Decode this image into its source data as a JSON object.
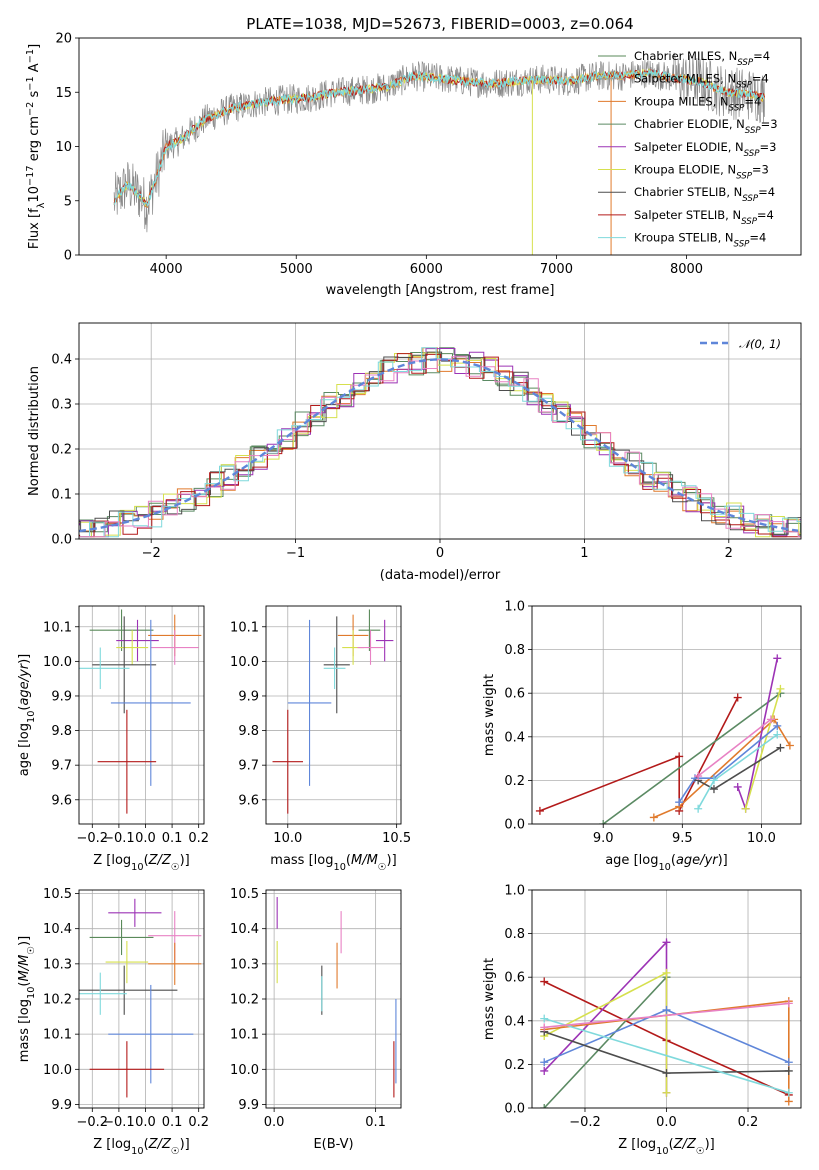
{
  "colors": {
    "grid": "#b0b0b0",
    "chabrier_miles": "#5a8a5a",
    "salpeter_miles": "#999999",
    "kroupa_miles": "#e07a2c",
    "chabrier_elodie": "#5b8a63",
    "salpeter_elodie": "#9c33b5",
    "kroupa_elodie": "#d6e04e",
    "chabrier_stelib": "#4d4d4d",
    "salpeter_stelib": "#b31a1a",
    "kroupa_stelib": "#7fd9dc",
    "blue": "#5f86d9",
    "pink": "#e882c4"
  },
  "chart_data": [
    {
      "id": "spectrum",
      "type": "line",
      "title": "PLATE=1038, MJD=52673, FIBERID=0003, z=0.064",
      "xlabel": "wavelength [Angstrom, rest frame]",
      "ylabel": "Flux [f_λ 10^-17 erg cm^-2 s^-1 A^-1]",
      "xlim": [
        3330,
        8880
      ],
      "ylim": [
        0,
        20
      ],
      "xticks": [
        4000,
        5000,
        6000,
        7000,
        8000
      ],
      "yticks": [
        0,
        5,
        10,
        15,
        20
      ],
      "continuum_x": [
        3600,
        3700,
        3800,
        3850,
        3950,
        4000,
        4100,
        4200,
        4300,
        4400,
        4500,
        4700,
        4900,
        5100,
        5300,
        5500,
        5700,
        5900,
        6100,
        6300,
        6500,
        6700,
        6900,
        7100,
        7300,
        7500,
        7700,
        7900,
        8100,
        8300,
        8500,
        8600
      ],
      "continuum_y": [
        5.0,
        6.5,
        5.5,
        4.5,
        8.0,
        10.0,
        10.5,
        11.5,
        12.5,
        13.0,
        13.5,
        14.0,
        14.3,
        14.5,
        15.0,
        15.2,
        15.5,
        16.5,
        16.3,
        16.0,
        15.8,
        16.0,
        16.2,
        16.0,
        16.5,
        16.5,
        16.8,
        16.3,
        16.0,
        15.0,
        14.8,
        14.5
      ],
      "legend": [
        {
          "label": "Chabrier MILES, N",
          "sub": "SSP",
          "suffix": "=4"
        },
        {
          "label": "Salpeter MILES, N",
          "sub": "SSP",
          "suffix": "=4"
        },
        {
          "label": "Kroupa MILES, N",
          "sub": "SSP",
          "suffix": "=4"
        },
        {
          "label": "Chabrier ELODIE, N",
          "sub": "SSP",
          "suffix": "=3"
        },
        {
          "label": "Salpeter ELODIE, N",
          "sub": "SSP",
          "suffix": "=3"
        },
        {
          "label": "Kroupa ELODIE, N",
          "sub": "SSP",
          "suffix": "=3"
        },
        {
          "label": "Chabrier STELIB, N",
          "sub": "SSP",
          "suffix": "=4"
        },
        {
          "label": "Salpeter STELIB, N",
          "sub": "SSP",
          "suffix": "=4"
        },
        {
          "label": "Kroupa STELIB, N",
          "sub": "SSP",
          "suffix": "=4"
        }
      ]
    },
    {
      "id": "residuals",
      "type": "line",
      "xlabel": "(data-model)/error",
      "ylabel": "Normed distribution",
      "xlim": [
        -2.5,
        2.5
      ],
      "ylim": [
        0,
        0.48
      ],
      "xticks": [
        -2,
        -1,
        0,
        1,
        2
      ],
      "yticks": [
        0.0,
        0.1,
        0.2,
        0.3,
        0.4
      ],
      "legend": [
        "𝒩(0, 1)"
      ]
    },
    {
      "id": "age_vs_Z",
      "type": "scatter",
      "xlabel": "Z [log10(Z/Z☉)]",
      "ylabel": "age  [log10(age/yr)]",
      "xlim": [
        -0.25,
        0.22
      ],
      "ylim": [
        9.53,
        10.16
      ],
      "xticks": [
        -0.2,
        -0.1,
        0.0,
        0.1,
        0.2
      ],
      "yticks": [
        9.6,
        9.7,
        9.8,
        9.9,
        10.0,
        10.1
      ],
      "points": [
        {
          "x": -0.09,
          "y": 10.09,
          "xerr": 0.12,
          "yerr": 0.06,
          "c": "chabrier_miles"
        },
        {
          "x": 0.11,
          "y": 10.075,
          "xerr": 0.1,
          "yerr": 0.06,
          "c": "kroupa_miles"
        },
        {
          "x": -0.03,
          "y": 10.06,
          "xerr": 0.08,
          "yerr": 0.06,
          "c": "salpeter_elodie"
        },
        {
          "x": -0.05,
          "y": 10.04,
          "xerr": 0.06,
          "yerr": 0.05,
          "c": "kroupa_elodie"
        },
        {
          "x": 0.11,
          "y": 10.04,
          "xerr": 0.09,
          "yerr": 0.05,
          "c": "pink"
        },
        {
          "x": -0.08,
          "y": 9.99,
          "xerr": 0.12,
          "yerr": 0.14,
          "c": "chabrier_stelib"
        },
        {
          "x": -0.17,
          "y": 9.98,
          "xerr": 0.11,
          "yerr": 0.06,
          "c": "kroupa_stelib"
        },
        {
          "x": 0.02,
          "y": 9.88,
          "xerr": 0.15,
          "yerr": 0.24,
          "c": "blue"
        },
        {
          "x": -0.07,
          "y": 9.71,
          "xerr": 0.11,
          "yerr": 0.15,
          "c": "salpeter_stelib"
        }
      ]
    },
    {
      "id": "age_vs_mass",
      "type": "scatter",
      "xlabel": "mass [log10(M/M☉)]",
      "ylabel": "",
      "xlim": [
        9.9,
        10.52
      ],
      "ylim": [
        9.53,
        10.16
      ],
      "xticks": [
        10.0,
        10.5
      ],
      "yticks": [
        9.6,
        9.7,
        9.8,
        9.9,
        10.0,
        10.1
      ],
      "points": [
        {
          "x": 10.375,
          "y": 10.09,
          "xerr": 0.05,
          "yerr": 0.06,
          "c": "chabrier_miles"
        },
        {
          "x": 10.3,
          "y": 10.075,
          "xerr": 0.07,
          "yerr": 0.06,
          "c": "kroupa_miles"
        },
        {
          "x": 10.445,
          "y": 10.06,
          "xerr": 0.04,
          "yerr": 0.06,
          "c": "salpeter_elodie"
        },
        {
          "x": 10.3,
          "y": 10.04,
          "xerr": 0.05,
          "yerr": 0.05,
          "c": "kroupa_elodie"
        },
        {
          "x": 10.38,
          "y": 10.04,
          "xerr": 0.06,
          "yerr": 0.05,
          "c": "pink"
        },
        {
          "x": 10.225,
          "y": 9.99,
          "xerr": 0.06,
          "yerr": 0.14,
          "c": "chabrier_stelib"
        },
        {
          "x": 10.215,
          "y": 9.98,
          "xerr": 0.05,
          "yerr": 0.06,
          "c": "kroupa_stelib"
        },
        {
          "x": 10.1,
          "y": 9.88,
          "xerr": 0.1,
          "yerr": 0.24,
          "c": "blue"
        },
        {
          "x": 10.0,
          "y": 9.71,
          "xerr": 0.07,
          "yerr": 0.15,
          "c": "salpeter_stelib"
        }
      ]
    },
    {
      "id": "weight_vs_age",
      "type": "line",
      "xlabel": "age  [log10(age/yr)]",
      "ylabel": "mass weight",
      "xlim": [
        8.55,
        10.25
      ],
      "ylim": [
        0,
        1.0
      ],
      "xticks": [
        9.0,
        9.5,
        10.0
      ],
      "yticks": [
        0.0,
        0.2,
        0.4,
        0.6,
        0.8,
        1.0
      ],
      "series": [
        {
          "c": "salpeter_stelib",
          "x": [
            8.6,
            9.48,
            9.48,
            9.85
          ],
          "y": [
            0.06,
            0.31,
            0.06,
            0.58
          ]
        },
        {
          "c": "chabrier_elodie",
          "x": [
            9.0,
            10.12
          ],
          "y": [
            0.0,
            0.6
          ]
        },
        {
          "c": "kroupa_miles",
          "x": [
            9.32,
            9.48,
            10.08,
            10.18
          ],
          "y": [
            0.03,
            0.08,
            0.48,
            0.36
          ]
        },
        {
          "c": "salpeter_elodie",
          "x": [
            9.85,
            9.9,
            10.1
          ],
          "y": [
            0.17,
            0.07,
            0.76
          ]
        },
        {
          "c": "kroupa_elodie",
          "x": [
            9.9,
            10.12
          ],
          "y": [
            0.07,
            0.62
          ]
        },
        {
          "c": "blue",
          "x": [
            9.48,
            9.58,
            9.7,
            10.1
          ],
          "y": [
            0.1,
            0.21,
            0.21,
            0.45
          ]
        },
        {
          "c": "chabrier_stelib",
          "x": [
            9.6,
            9.7,
            10.12
          ],
          "y": [
            0.2,
            0.16,
            0.35
          ]
        },
        {
          "c": "kroupa_stelib",
          "x": [
            9.6,
            9.7,
            10.1
          ],
          "y": [
            0.07,
            0.2,
            0.41
          ]
        },
        {
          "c": "pink",
          "x": [
            9.6,
            10.06
          ],
          "y": [
            0.22,
            0.48
          ]
        }
      ]
    },
    {
      "id": "mass_vs_Z",
      "type": "scatter",
      "xlabel": "Z [log10(Z/Z☉)]",
      "ylabel": "mass [log10(M/M☉)]",
      "xlim": [
        -0.25,
        0.22
      ],
      "ylim": [
        9.89,
        10.51
      ],
      "xticks": [
        -0.2,
        -0.1,
        0.0,
        0.1,
        0.2
      ],
      "yticks": [
        9.9,
        10.0,
        10.1,
        10.2,
        10.3,
        10.4,
        10.5
      ],
      "points": [
        {
          "x": -0.04,
          "y": 10.445,
          "xerr": 0.1,
          "yerr": 0.04,
          "c": "salpeter_elodie"
        },
        {
          "x": 0.11,
          "y": 10.38,
          "xerr": 0.1,
          "yerr": 0.07,
          "c": "pink"
        },
        {
          "x": -0.09,
          "y": 10.375,
          "xerr": 0.12,
          "yerr": 0.05,
          "c": "chabrier_miles"
        },
        {
          "x": -0.07,
          "y": 10.305,
          "xerr": 0.08,
          "yerr": 0.06,
          "c": "kroupa_elodie"
        },
        {
          "x": 0.11,
          "y": 10.3,
          "xerr": 0.1,
          "yerr": 0.06,
          "c": "kroupa_miles"
        },
        {
          "x": -0.08,
          "y": 10.225,
          "xerr": 0.2,
          "yerr": 0.07,
          "c": "chabrier_stelib"
        },
        {
          "x": -0.17,
          "y": 10.215,
          "xerr": 0.1,
          "yerr": 0.06,
          "c": "kroupa_stelib"
        },
        {
          "x": 0.02,
          "y": 10.1,
          "xerr": 0.16,
          "yerr": 0.14,
          "c": "blue"
        },
        {
          "x": -0.07,
          "y": 10.0,
          "xerr": 0.14,
          "yerr": 0.08,
          "c": "salpeter_stelib"
        }
      ]
    },
    {
      "id": "mass_vs_ebv",
      "type": "scatter",
      "xlabel": "E(B-V)",
      "ylabel": "",
      "xlim": [
        -0.008,
        0.125
      ],
      "ylim": [
        9.89,
        10.51
      ],
      "xticks": [
        0.0,
        0.1
      ],
      "yticks": [
        9.9,
        10.0,
        10.1,
        10.2,
        10.3,
        10.4,
        10.5
      ],
      "points": [
        {
          "x": 0.003,
          "y": 10.445,
          "yerr": 0.045,
          "c": "salpeter_elodie"
        },
        {
          "x": 0.003,
          "y": 10.305,
          "yerr": 0.06,
          "c": "kroupa_elodie"
        },
        {
          "x": 0.066,
          "y": 10.39,
          "yerr": 0.06,
          "c": "pink"
        },
        {
          "x": 0.062,
          "y": 10.295,
          "yerr": 0.065,
          "c": "kroupa_miles"
        },
        {
          "x": 0.047,
          "y": 10.225,
          "yerr": 0.07,
          "c": "chabrier_stelib"
        },
        {
          "x": 0.047,
          "y": 10.215,
          "yerr": 0.05,
          "c": "kroupa_stelib"
        },
        {
          "x": 0.12,
          "y": 10.08,
          "yerr": 0.12,
          "c": "blue"
        },
        {
          "x": 0.118,
          "y": 10.0,
          "yerr": 0.08,
          "c": "salpeter_stelib"
        }
      ]
    },
    {
      "id": "weight_vs_Z",
      "type": "line",
      "xlabel": "Z [log10(Z/Z☉)]",
      "ylabel": "mass weight",
      "xlim": [
        -0.33,
        0.33
      ],
      "ylim": [
        0,
        1.0
      ],
      "xticks": [
        -0.2,
        0.0,
        0.2
      ],
      "yticks": [
        0.0,
        0.2,
        0.4,
        0.6,
        0.8,
        1.0
      ],
      "series": [
        {
          "c": "salpeter_stelib",
          "x": [
            -0.3,
            0.0,
            0.3
          ],
          "y": [
            0.58,
            0.31,
            0.06
          ]
        },
        {
          "c": "chabrier_elodie",
          "x": [
            -0.3,
            0.0
          ],
          "y": [
            0.0,
            0.6
          ]
        },
        {
          "c": "salpeter_elodie",
          "x": [
            -0.3,
            0.0,
            0.0
          ],
          "y": [
            0.17,
            0.76,
            0.07
          ]
        },
        {
          "c": "kroupa_elodie",
          "x": [
            -0.3,
            0.0,
            0.0
          ],
          "y": [
            0.33,
            0.62,
            0.07
          ]
        },
        {
          "c": "kroupa_miles",
          "x": [
            -0.3,
            0.3,
            0.3
          ],
          "y": [
            0.36,
            0.49,
            0.03
          ]
        },
        {
          "c": "blue",
          "x": [
            -0.3,
            0.0,
            0.3
          ],
          "y": [
            0.21,
            0.45,
            0.21
          ]
        },
        {
          "c": "chabrier_stelib",
          "x": [
            -0.3,
            0.0,
            0.3
          ],
          "y": [
            0.35,
            0.16,
            0.17
          ]
        },
        {
          "c": "kroupa_stelib",
          "x": [
            -0.3,
            0.3
          ],
          "y": [
            0.41,
            0.07
          ]
        },
        {
          "c": "pink",
          "x": [
            -0.3,
            0.3
          ],
          "y": [
            0.37,
            0.48
          ]
        }
      ]
    }
  ]
}
